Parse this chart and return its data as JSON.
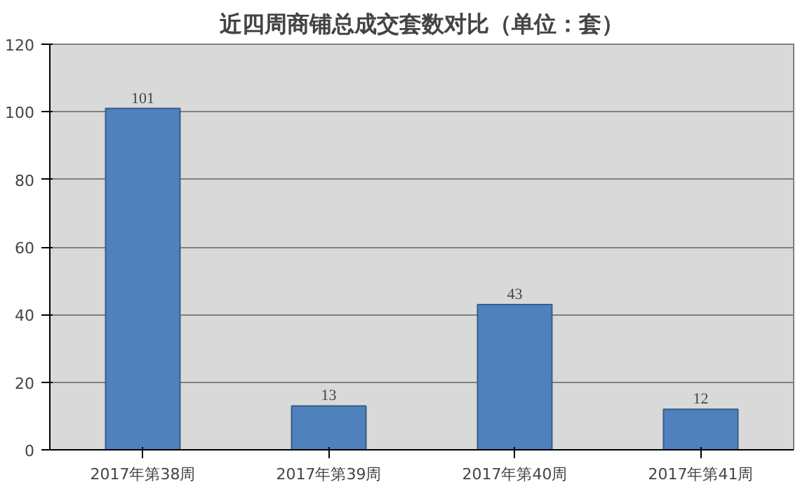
{
  "chart_data": {
    "type": "bar",
    "title": "近四周商铺总成交套数对比（单位：套）",
    "categories": [
      "2017年第38周",
      "2017年第39周",
      "2017年第40周",
      "2017年第41周"
    ],
    "values": [
      101,
      13,
      43,
      12
    ],
    "color": "#4f81bd",
    "ylim": [
      0,
      120
    ],
    "yticks": [
      0,
      20,
      40,
      60,
      80,
      100,
      120
    ],
    "grid": "y",
    "data_labels": true
  }
}
